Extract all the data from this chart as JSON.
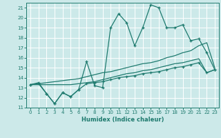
{
  "xlabel": "Humidex (Indice chaleur)",
  "bg_color": "#cce9e9",
  "grid_color": "#b8d8d8",
  "line_color": "#1e7a6e",
  "xlim": [
    -0.5,
    23.5
  ],
  "ylim": [
    11,
    21.5
  ],
  "yticks": [
    11,
    12,
    13,
    14,
    15,
    16,
    17,
    18,
    19,
    20,
    21
  ],
  "xticks": [
    0,
    1,
    2,
    3,
    4,
    5,
    6,
    7,
    8,
    9,
    10,
    11,
    12,
    13,
    14,
    15,
    16,
    17,
    18,
    19,
    20,
    21,
    22,
    23
  ],
  "line1_x": [
    0,
    1,
    2,
    3,
    4,
    5,
    6,
    7,
    8,
    9,
    10,
    11,
    12,
    13,
    14,
    15,
    16,
    17,
    18,
    19,
    20,
    21,
    22,
    23
  ],
  "line1_y": [
    13.3,
    13.5,
    12.4,
    11.4,
    12.5,
    12.1,
    12.8,
    15.6,
    13.2,
    13.0,
    19.0,
    20.4,
    19.5,
    17.2,
    19.0,
    21.3,
    21.0,
    19.0,
    19.0,
    19.3,
    17.7,
    17.9,
    16.5,
    14.8
  ],
  "line2_x": [
    0,
    1,
    2,
    3,
    4,
    5,
    6,
    7,
    8,
    9,
    10,
    11,
    12,
    13,
    14,
    15,
    16,
    17,
    18,
    19,
    20,
    21,
    22,
    23
  ],
  "line2_y": [
    13.3,
    13.4,
    13.5,
    13.6,
    13.7,
    13.8,
    13.9,
    14.1,
    14.3,
    14.5,
    14.6,
    14.8,
    15.0,
    15.2,
    15.4,
    15.5,
    15.7,
    16.0,
    16.2,
    16.5,
    16.7,
    17.2,
    17.5,
    15.0
  ],
  "line3_x": [
    0,
    1,
    2,
    3,
    4,
    5,
    6,
    7,
    8,
    9,
    10,
    11,
    12,
    13,
    14,
    15,
    16,
    17,
    18,
    19,
    20,
    21,
    22,
    23
  ],
  "line3_y": [
    13.3,
    13.3,
    13.3,
    13.3,
    13.3,
    13.3,
    13.4,
    13.5,
    13.6,
    13.8,
    14.0,
    14.2,
    14.4,
    14.5,
    14.7,
    14.8,
    15.0,
    15.2,
    15.4,
    15.5,
    15.7,
    15.9,
    14.5,
    14.8
  ],
  "line4_x": [
    0,
    1,
    2,
    3,
    4,
    5,
    6,
    7,
    8,
    9,
    10,
    11,
    12,
    13,
    14,
    15,
    16,
    17,
    18,
    19,
    20,
    21,
    22,
    23
  ],
  "line4_y": [
    13.3,
    13.4,
    12.4,
    11.4,
    12.5,
    12.1,
    12.8,
    13.4,
    13.5,
    13.6,
    13.8,
    14.0,
    14.1,
    14.2,
    14.4,
    14.5,
    14.6,
    14.8,
    15.0,
    15.1,
    15.3,
    15.5,
    14.5,
    14.8
  ]
}
